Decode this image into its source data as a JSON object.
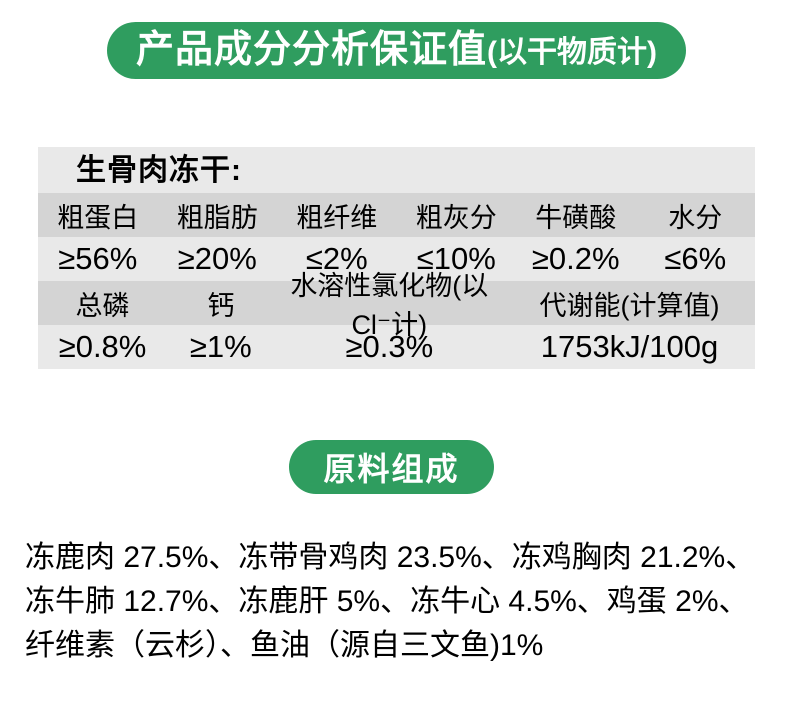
{
  "colors": {
    "accent_green": "#2f9d5f",
    "row_light": "#e9e9e9",
    "row_dark": "#d4d4d4",
    "text": "#000000",
    "banner_text": "#ffffff"
  },
  "banner": {
    "title": "产品成分分析保证值",
    "subtitle": "(以干物质计)"
  },
  "table": {
    "title": "生骨肉冻干:",
    "header1": [
      "粗蛋白",
      "粗脂肪",
      "粗纤维",
      "粗灰分",
      "牛磺酸",
      "水分"
    ],
    "values1": [
      "≥56%",
      "≥20%",
      "≤2%",
      "≤10%",
      "≥0.2%",
      "≤6%"
    ],
    "header2": [
      "总磷",
      "钙",
      "水溶性氯化物(以Cl⁻计)",
      "代谢能(计算值)"
    ],
    "values2": [
      "≥0.8%",
      "≥1%",
      "≥0.3%",
      "1753kJ/100g"
    ]
  },
  "section2": {
    "title": "原料组成"
  },
  "ingredients": {
    "text": "冻鹿肉 27.5%、冻带骨鸡肉 23.5%、冻鸡胸肉 21.2%、冻牛肺 12.7%、冻鹿肝 5%、冻牛心 4.5%、鸡蛋 2%、纤维素（云杉）、鱼油（源自三文鱼)1%"
  }
}
